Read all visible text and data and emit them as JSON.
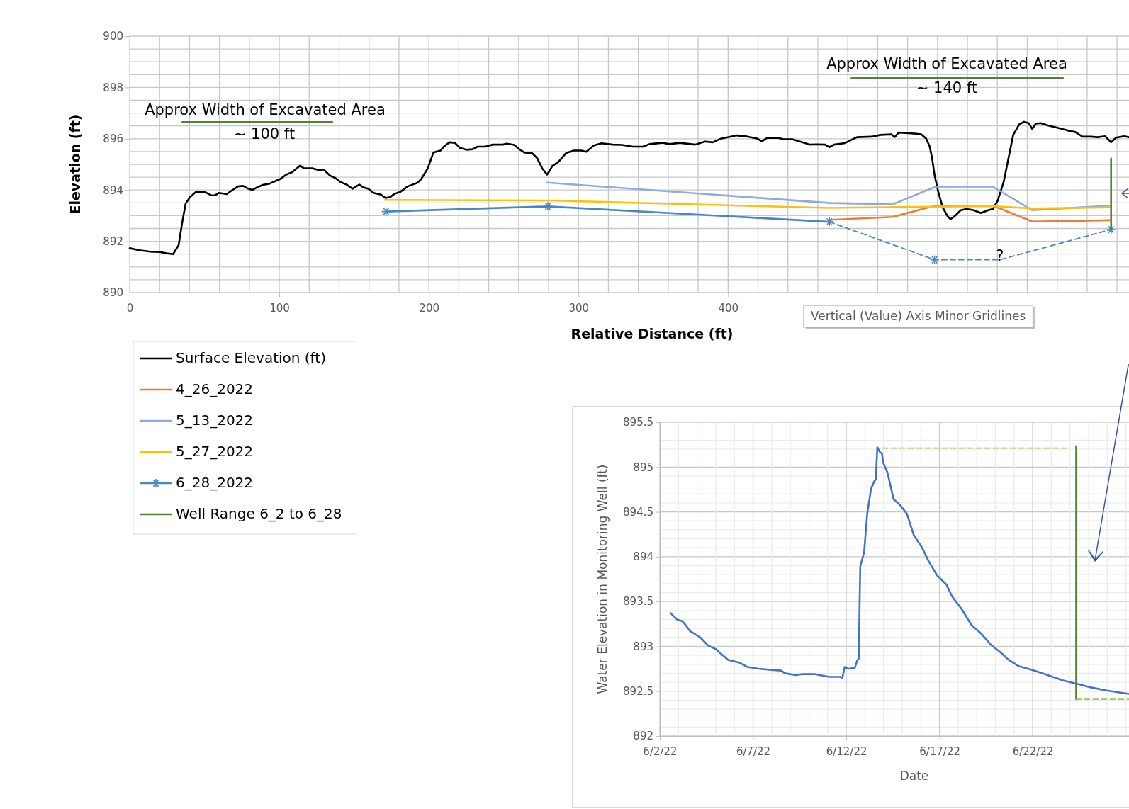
{
  "chart_data": [
    {
      "type": "line",
      "xlabel": "Relative Distance (ft)",
      "ylabel": "Elevation (ft)",
      "xlim": [
        0,
        668
      ],
      "ylim": [
        890,
        900
      ],
      "xticks": [
        0,
        {
          "value": 20,
          "label": null
        },
        {
          "value": 40,
          "label": null
        },
        {
          "value": 60,
          "label": null
        },
        {
          "value": 80,
          "label": null
        },
        100,
        {
          "value": 120,
          "label": null
        },
        {
          "value": 140,
          "label": null
        },
        {
          "value": 160,
          "label": null
        },
        {
          "value": 180,
          "label": null
        },
        200,
        {
          "value": 220,
          "label": null
        },
        {
          "value": 240,
          "label": null
        },
        {
          "value": 260,
          "label": null
        },
        {
          "value": 280,
          "label": null
        },
        300,
        {
          "value": 320,
          "label": null
        },
        {
          "value": 340,
          "label": null
        },
        {
          "value": 360,
          "label": null
        },
        {
          "value": 380,
          "label": null
        },
        400,
        {
          "value": 420,
          "label": null
        },
        {
          "value": 440,
          "label": null
        },
        {
          "value": 460,
          "label": null
        },
        {
          "value": 480,
          "label": null
        },
        {
          "value": 500,
          "label": null
        },
        {
          "value": 520,
          "label": null
        },
        {
          "value": 540,
          "label": null
        },
        {
          "value": 560,
          "label": null
        },
        {
          "value": 580,
          "label": null
        },
        {
          "value": 600,
          "label": null
        },
        {
          "value": 620,
          "label": null
        },
        {
          "value": 640,
          "label": null
        },
        {
          "value": 660,
          "label": null
        }
      ],
      "yticks": [
        890,
        {
          "value": 890.5,
          "label": null
        },
        {
          "value": 891,
          "label": null
        },
        {
          "value": 891.5,
          "label": null
        },
        892,
        {
          "value": 892.5,
          "label": null
        },
        {
          "value": 893,
          "label": null
        },
        {
          "value": 893.5,
          "label": null
        },
        894,
        {
          "value": 894.5,
          "label": null
        },
        {
          "value": 895,
          "label": null
        },
        {
          "value": 895.5,
          "label": null
        },
        896,
        {
          "value": 896.5,
          "label": null
        },
        {
          "value": 897,
          "label": null
        },
        {
          "value": 897.5,
          "label": null
        },
        898,
        {
          "value": 898.5,
          "label": null
        },
        {
          "value": 899,
          "label": null
        },
        {
          "value": 899.5,
          "label": null
        },
        900
      ],
      "grid": true,
      "legend": "bottom left",
      "series": [
        {
          "name": "Surface Elevation (ft)",
          "color": "#000000",
          "x": [
            0,
            6.4,
            13,
            20,
            25,
            29,
            32.7,
            35,
            37.4,
            40.3,
            44.5,
            50.4,
            54.7,
            57,
            59.7,
            64.8,
            68,
            72.4,
            75.8,
            79,
            82,
            85,
            89,
            93.6,
            101,
            104.6,
            108.8,
            113.9,
            116.4,
            122,
            126.6,
            129.6,
            134,
            137.6,
            141,
            145,
            149,
            152,
            153.6,
            156,
            159.6,
            163,
            168,
            171,
            174,
            177,
            180.7,
            185.8,
            190,
            192.6,
            195,
            199.3,
            203,
            207.8,
            210,
            213.7,
            217.4,
            220.8,
            225,
            229.2,
            232.6,
            237.7,
            242.7,
            249.5,
            252,
            257,
            260.5,
            263.9,
            269,
            272.3,
            275.7,
            279,
            280.7,
            282.4,
            286.7,
            291.7,
            296.8,
            301.9,
            305.2,
            310.3,
            315.4,
            323,
            328.9,
            336.5,
            343.2,
            347.5,
            355.9,
            361,
            367.7,
            377.9,
            384.6,
            389.7,
            395.6,
            401.5,
            405.7,
            413.3,
            419.3,
            422.6,
            426,
            433.6,
            437,
            442.9,
            448,
            454.7,
            459,
            464.9,
            467.7,
            470.8,
            478.1,
            486.1,
            495.7,
            502,
            509.3,
            511.3,
            514,
            524.4,
            529.2,
            532.4,
            534.8,
            536.4,
            538,
            540.4,
            543.5,
            546.7,
            548.6,
            551.5,
            555.5,
            559.5,
            564.3,
            569,
            573.8,
            577,
            580.2,
            584.2,
            587.4,
            590.6,
            594.6,
            597.8,
            601,
            603.3,
            605.7,
            608.9,
            613.7,
            620.1,
            626.5,
            632.1,
            636.9,
            642.4,
            647.2,
            652,
            656,
            659.2,
            664.8,
            668
          ],
          "values": [
            891.73,
            891.65,
            891.6,
            891.58,
            891.53,
            891.5,
            891.85,
            892.7,
            893.47,
            893.72,
            893.94,
            893.92,
            893.79,
            893.79,
            893.89,
            893.84,
            893.97,
            894.14,
            894.16,
            894.06,
            894.0,
            894.1,
            894.2,
            894.25,
            894.44,
            894.6,
            894.7,
            894.95,
            894.85,
            894.85,
            894.77,
            894.8,
            894.56,
            894.46,
            894.31,
            894.21,
            894.05,
            894.16,
            894.21,
            894.11,
            894.05,
            893.89,
            893.82,
            893.69,
            893.72,
            893.85,
            893.92,
            894.14,
            894.23,
            894.29,
            894.44,
            894.85,
            895.46,
            895.54,
            895.69,
            895.86,
            895.84,
            895.64,
            895.57,
            895.59,
            895.69,
            895.69,
            895.77,
            895.77,
            895.81,
            895.76,
            895.59,
            895.46,
            895.44,
            895.25,
            894.85,
            894.6,
            894.75,
            894.93,
            895.1,
            895.44,
            895.54,
            895.54,
            895.49,
            895.74,
            895.82,
            895.77,
            895.76,
            895.69,
            895.69,
            895.79,
            895.84,
            895.79,
            895.84,
            895.77,
            895.89,
            895.86,
            896.01,
            896.08,
            896.13,
            896.08,
            896.01,
            895.9,
            896.03,
            896.03,
            895.98,
            895.98,
            895.89,
            895.77,
            895.78,
            895.77,
            895.67,
            895.77,
            895.83,
            896.06,
            896.08,
            896.15,
            896.17,
            896.06,
            896.24,
            896.2,
            896.17,
            896.01,
            895.69,
            895.23,
            894.59,
            893.95,
            893.31,
            892.98,
            892.86,
            892.98,
            893.21,
            893.26,
            893.21,
            893.1,
            893.21,
            893.26,
            893.58,
            894.31,
            895.23,
            896.15,
            896.56,
            896.66,
            896.61,
            896.38,
            896.59,
            896.61,
            896.52,
            896.43,
            896.33,
            896.26,
            896.08,
            896.08,
            896.06,
            896.1,
            895.86,
            896.04,
            896.1,
            896.06
          ]
        },
        {
          "name": "4_26_2022",
          "color": "#ed7d31",
          "x": [
            468.6,
            510,
            538.8,
            577,
            603.4,
            655.2
          ],
          "values": [
            892.84,
            892.95,
            893.39,
            893.39,
            892.77,
            892.82
          ]
        },
        {
          "name": "5_13_2022",
          "color": "#8faadc",
          "x": [
            279,
            468.6,
            510,
            538.8,
            577,
            603.4,
            655.2
          ],
          "values": [
            894.29,
            893.49,
            893.44,
            894.13,
            894.13,
            893.21,
            893.39
          ]
        },
        {
          "name": "5_27_2022",
          "color": "#ffc000",
          "x": [
            170.6,
            280.7,
            467.4,
            538.8,
            577,
            603.4,
            655.2
          ],
          "values": [
            893.61,
            893.59,
            893.3,
            893.35,
            893.37,
            893.28,
            893.32
          ]
        },
        {
          "name": "6_28_2022",
          "color": "#4a86c5",
          "marker": "cross",
          "x": [
            171.4,
            279.5,
            467.7
          ],
          "values": [
            893.16,
            893.36,
            892.76
          ]
        },
        {
          "color": "#4a86c5",
          "line_style": "dashed",
          "x": [
            467.7,
            538,
            581.7,
            656
          ],
          "values": [
            892.76,
            891.28,
            891.28,
            892.46
          ]
        },
        {
          "type": "scatter",
          "color": "#4a86c5",
          "marker": "cross",
          "x": [
            538,
            656
          ],
          "values": [
            891.28,
            892.46
          ]
        },
        {
          "name": "Well Range 6_2 to 6_28",
          "color": "#548235",
          "x": [
            656,
            656
          ],
          "values": [
            892.46,
            895.23
          ]
        },
        {
          "color": "#548235",
          "x": [
            35.2,
            135.4
          ],
          "values": [
            896.65,
            896.65
          ]
        },
        {
          "color": "#548235",
          "x": [
            482.5,
            623.8
          ],
          "values": [
            898.36,
            898.36
          ]
        }
      ],
      "annotations": [
        "Approx Width of Excavated Area",
        "~ 100 ft",
        "Approx Width of Excavated Area",
        "~ 140 ft",
        {
          "text": "?",
          "x": 581.7,
          "y": 891.28
        },
        "Vertical (Value) Axis Minor Gridlines"
      ]
    },
    {
      "type": "line",
      "xlabel": "Date",
      "ylabel": "Water Elevation in Monitoring Well (ft)",
      "xlim": [
        "2022-06-02",
        "2022-06-27T04:00"
      ],
      "ylim": [
        892,
        895.5
      ],
      "xticks": [
        {
          "value": "2022-06-02",
          "label": "6/2/22"
        },
        {
          "value": "2022-06-03",
          "label": null
        },
        {
          "value": "2022-06-04",
          "label": null
        },
        {
          "value": "2022-06-05",
          "label": null
        },
        {
          "value": "2022-06-06",
          "label": null
        },
        {
          "value": "2022-06-07",
          "label": "6/7/22"
        },
        {
          "value": "2022-06-08",
          "label": null
        },
        {
          "value": "2022-06-09",
          "label": null
        },
        {
          "value": "2022-06-10",
          "label": null
        },
        {
          "value": "2022-06-11",
          "label": null
        },
        {
          "value": "2022-06-12",
          "label": "6/12/22"
        },
        {
          "value": "2022-06-13",
          "label": null
        },
        {
          "value": "2022-06-14",
          "label": null
        },
        {
          "value": "2022-06-15",
          "label": null
        },
        {
          "value": "2022-06-16",
          "label": null
        },
        {
          "value": "2022-06-17",
          "label": "6/17/22"
        },
        {
          "value": "2022-06-18",
          "label": null
        },
        {
          "value": "2022-06-19",
          "label": null
        },
        {
          "value": "2022-06-20",
          "label": null
        },
        {
          "value": "2022-06-21",
          "label": null
        },
        {
          "value": "2022-06-22",
          "label": "6/22/22"
        },
        {
          "value": "2022-06-23",
          "label": null
        },
        {
          "value": "2022-06-24",
          "label": null
        },
        {
          "value": "2022-06-25",
          "label": null
        },
        {
          "value": "2022-06-26",
          "label": null
        },
        {
          "value": "2022-06-27",
          "label": null
        }
      ],
      "yticks": [
        892,
        {
          "value": 892.1,
          "label": null
        },
        {
          "value": 892.2,
          "label": null
        },
        {
          "value": 892.3,
          "label": null
        },
        {
          "value": 892.4,
          "label": null
        },
        892.5,
        {
          "value": 892.6,
          "label": null
        },
        {
          "value": 892.7,
          "label": null
        },
        {
          "value": 892.8,
          "label": null
        },
        {
          "value": 892.9,
          "label": null
        },
        893,
        {
          "value": 893.1,
          "label": null
        },
        {
          "value": 893.2,
          "label": null
        },
        {
          "value": 893.3,
          "label": null
        },
        {
          "value": 893.4,
          "label": null
        },
        893.5,
        {
          "value": 893.6,
          "label": null
        },
        {
          "value": 893.7,
          "label": null
        },
        {
          "value": 893.8,
          "label": null
        },
        {
          "value": 893.9,
          "label": null
        },
        894,
        {
          "value": 894.1,
          "label": null
        },
        {
          "value": 894.2,
          "label": null
        },
        {
          "value": 894.3,
          "label": null
        },
        {
          "value": 894.4,
          "label": null
        },
        894.5,
        {
          "value": 894.6,
          "label": null
        },
        {
          "value": 894.7,
          "label": null
        },
        {
          "value": 894.8,
          "label": null
        },
        {
          "value": 894.9,
          "label": null
        },
        895,
        {
          "value": 895.1,
          "label": null
        },
        {
          "value": 895.2,
          "label": null
        },
        {
          "value": 895.3,
          "label": null
        },
        {
          "value": 895.4,
          "label": null
        },
        895.5
      ],
      "grid": true,
      "series": [
        {
          "color": "#4472c4",
          "x": [
            "2022-06-02T14:00",
            "2022-06-02T22:00",
            "2022-06-03T05:00",
            "2022-06-03T09:00",
            "2022-06-03T15:00",
            "2022-06-04T04:00",
            "2022-06-04T14:00",
            "2022-06-05T00:00",
            "2022-06-05T09:00",
            "2022-06-05T16:00",
            "2022-06-06T06:00",
            "2022-06-06T17:00",
            "2022-06-07T07:00",
            "2022-06-07T21:00",
            "2022-06-08T12:00",
            "2022-06-08T17:00",
            "2022-06-09T07:00",
            "2022-06-09T14:00",
            "2022-06-10T08:00",
            "2022-06-11T02:00",
            "2022-06-11T16:00",
            "2022-06-11T19:00",
            "2022-06-11T22:00",
            "2022-06-12T03:00",
            "2022-06-12T11:00",
            "2022-06-12T14:00",
            "2022-06-12T16:00",
            "2022-06-12T18:00",
            "2022-06-12T23:00",
            "2022-06-13T03:00",
            "2022-06-13T08:00",
            "2022-06-13T12:00",
            "2022-06-13T14:00",
            "2022-06-13T16:00",
            "2022-06-13T19:00",
            "2022-06-13T22:00",
            "2022-06-13T23:30",
            "2022-06-14T05:00",
            "2022-06-14T13:00",
            "2022-06-14T21:00",
            "2022-06-15T06:00",
            "2022-06-15T15:00",
            "2022-06-16T01:00",
            "2022-06-16T10:00",
            "2022-06-16T21:00",
            "2022-06-17T09:00",
            "2022-06-17T16:00",
            "2022-06-18T05:00",
            "2022-06-18T17:00",
            "2022-06-19T06:00",
            "2022-06-19T18:00",
            "2022-06-20T07:00",
            "2022-06-20T17:00",
            "2022-06-21T06:00",
            "2022-06-21T22:00",
            "2022-06-22T16:00",
            "2022-06-23T15:00",
            "2022-06-24T10:00",
            "2022-06-25T04:00",
            "2022-06-25T22:00",
            "2022-06-26T20:00",
            "2022-06-27T04:00"
          ],
          "values": [
            893.37,
            893.3,
            893.28,
            893.24,
            893.17,
            893.1,
            893.01,
            892.97,
            892.9,
            892.85,
            892.82,
            892.77,
            892.75,
            892.74,
            892.73,
            892.7,
            892.68,
            892.69,
            892.69,
            892.66,
            892.66,
            892.65,
            892.77,
            892.75,
            892.76,
            892.84,
            892.86,
            893.89,
            894.05,
            894.48,
            894.76,
            894.84,
            894.86,
            895.22,
            895.17,
            895.15,
            895.05,
            894.94,
            894.64,
            894.58,
            894.48,
            894.24,
            894.11,
            893.95,
            893.79,
            893.69,
            893.56,
            893.41,
            893.24,
            893.14,
            893.02,
            892.93,
            892.85,
            892.78,
            892.74,
            892.69,
            892.62,
            892.58,
            892.54,
            892.51,
            892.48,
            892.47
          ]
        },
        {
          "color": "#548235",
          "x": [
            "2022-06-24T08:00",
            "2022-06-24T08:00"
          ],
          "values": [
            892.41,
            895.23
          ]
        },
        {
          "color": "#92d050",
          "line_style": "dashed",
          "x": [
            "2022-06-13T23:00",
            "2022-06-23T20:00"
          ],
          "values": [
            895.21,
            895.21
          ]
        },
        {
          "color": "#92d050",
          "line_style": "dashed",
          "x": [
            "2022-06-24T08:00",
            "2022-06-27T04:00"
          ],
          "values": [
            892.41,
            892.41
          ]
        }
      ]
    }
  ]
}
